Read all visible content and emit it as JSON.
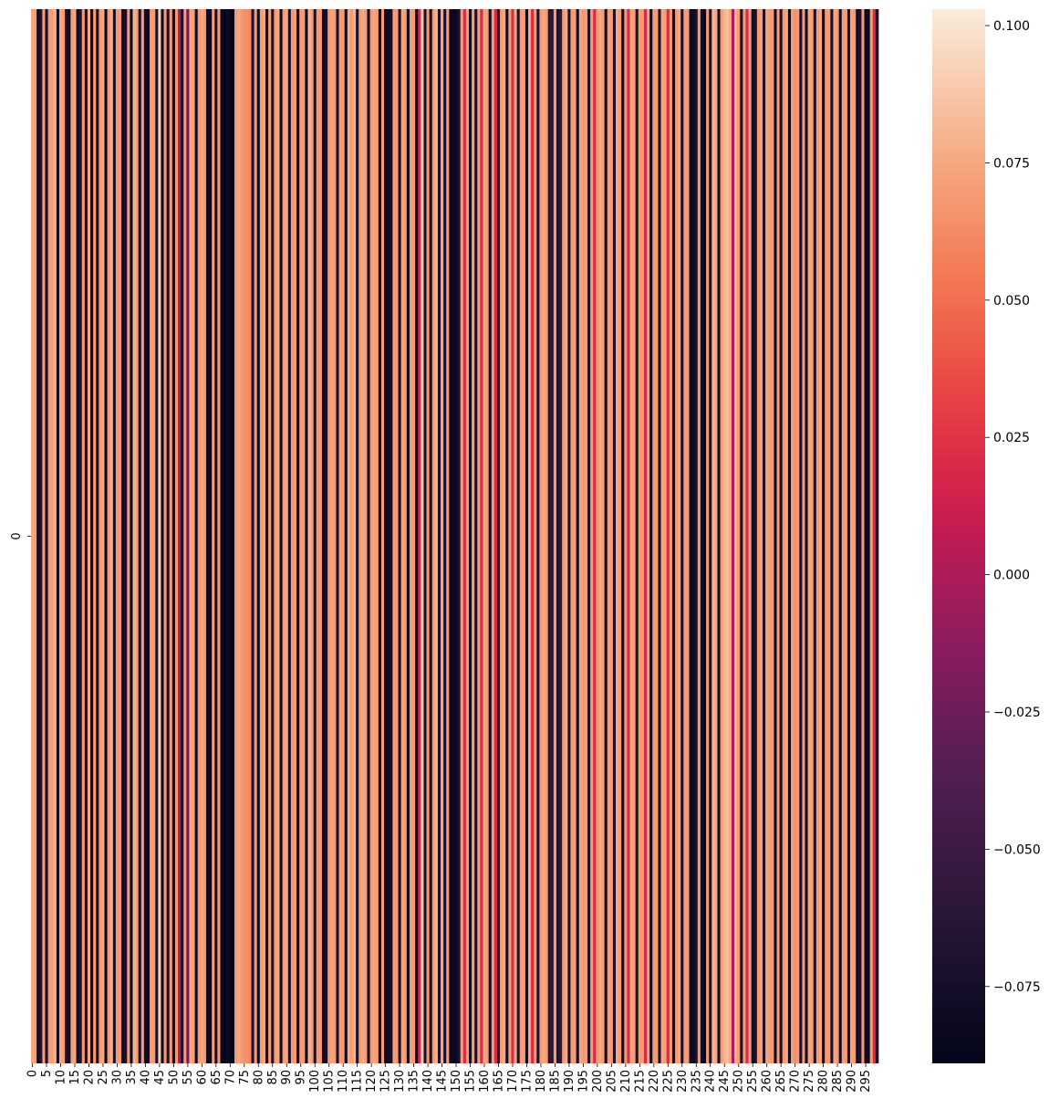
{
  "chart_data": {
    "type": "heatmap",
    "title": "",
    "xlabel": "",
    "ylabel": "",
    "rows": [
      "0"
    ],
    "n_columns": 300,
    "x_tick_labels": [
      "0",
      "5",
      "10",
      "15",
      "20",
      "25",
      "30",
      "35",
      "40",
      "45",
      "50",
      "55",
      "60",
      "65",
      "70",
      "75",
      "80",
      "85",
      "90",
      "95",
      "100",
      "105",
      "110",
      "115",
      "120",
      "125",
      "130",
      "135",
      "140",
      "145",
      "150",
      "155",
      "160",
      "165",
      "170",
      "175",
      "180",
      "185",
      "190",
      "195",
      "200",
      "205",
      "210",
      "215",
      "220",
      "225",
      "230",
      "235",
      "240",
      "245",
      "250",
      "255",
      "260",
      "265",
      "270",
      "275",
      "280",
      "285",
      "290",
      "295"
    ],
    "y_tick_labels": [
      "0"
    ],
    "colorbar": {
      "colormap": "rocket",
      "vmin": -0.089,
      "vmax": 0.103,
      "ticks": [
        0.1,
        0.075,
        0.05,
        0.025,
        0.0,
        -0.025,
        -0.05,
        -0.075
      ],
      "tick_labels": [
        "0.100",
        "0.075",
        "0.050",
        "0.025",
        "0.000",
        "−0.025",
        "−0.050",
        "−0.075"
      ]
    },
    "values": [
      0.075,
      0.07,
      -0.085,
      -0.07,
      0.07,
      -0.075,
      0.07,
      0.07,
      0.08,
      -0.08,
      0.075,
      0.07,
      -0.07,
      -0.08,
      0.07,
      0.075,
      -0.08,
      -0.07,
      0.07,
      -0.07,
      0.075,
      -0.08,
      0.07,
      -0.07,
      0.07,
      0.075,
      -0.085,
      0.07,
      0.08,
      -0.07,
      0.07,
      0.07,
      -0.08,
      -0.07,
      0.07,
      -0.085,
      0.08,
      0.07,
      -0.07,
      0.07,
      -0.08,
      -0.08,
      0.07,
      0.07,
      -0.07,
      0.09,
      -0.08,
      0.07,
      -0.07,
      0.07,
      -0.085,
      0.07,
      0.0,
      -0.07,
      0.07,
      -0.02,
      0.075,
      0.07,
      -0.08,
      0.07,
      0.075,
      0.07,
      -0.08,
      -0.085,
      0.07,
      -0.07,
      0.07,
      -0.085,
      -0.089,
      -0.08,
      -0.085,
      -0.089,
      0.07,
      0.075,
      0.07,
      0.065,
      0.065,
      0.06,
      -0.07,
      0.07,
      -0.08,
      0.07,
      0.075,
      -0.08,
      0.07,
      -0.07,
      0.07,
      0.075,
      -0.08,
      0.07,
      0.075,
      -0.07,
      0.07,
      0.07,
      -0.08,
      0.07,
      0.07,
      -0.085,
      0.08,
      0.07,
      -0.07,
      0.07,
      0.07,
      -0.08,
      -0.075,
      0.07,
      0.075,
      0.07,
      -0.07,
      0.07,
      0.07,
      -0.08,
      0.075,
      0.07,
      0.08,
      -0.07,
      0.07,
      0.075,
      0.07,
      -0.085,
      0.07,
      0.075,
      0.07,
      -0.08,
      0.07,
      -0.085,
      -0.08,
      -0.075,
      0.07,
      0.07,
      -0.07,
      0.075,
      0.07,
      -0.08,
      0.07,
      0.07,
      -0.085,
      0.02,
      0.09,
      -0.07,
      0.07,
      -0.08,
      0.07,
      0.08,
      -0.07,
      0.075,
      -0.07,
      0.07,
      -0.08,
      -0.085,
      -0.085,
      -0.07,
      0.07,
      0.02,
      0.075,
      -0.08,
      0.07,
      -0.07,
      0.07,
      0.02,
      0.075,
      0.07,
      -0.08,
      0.07,
      0.02,
      -0.07,
      0.07,
      0.075,
      -0.08,
      0.07,
      0.02,
      0.075,
      -0.07,
      0.07,
      0.07,
      -0.08,
      0.075,
      0.02,
      0.07,
      -0.07,
      0.07,
      0.075,
      0.07,
      -0.06,
      -0.06,
      0.07,
      -0.07,
      -0.06,
      0.07,
      0.075,
      -0.07,
      0.07,
      0.07,
      -0.08,
      0.075,
      0.07,
      0.07,
      -0.07,
      0.07,
      0.02,
      0.07,
      0.075,
      0.07,
      -0.08,
      0.07,
      0.07,
      -0.07,
      0.075,
      0.07,
      -0.08,
      0.07,
      0.02,
      0.075,
      0.07,
      -0.07,
      0.07,
      0.07,
      0.02,
      0.075,
      -0.08,
      0.07,
      0.07,
      -0.07,
      0.075,
      0.07,
      0.02,
      0.07,
      -0.08,
      0.07,
      0.075,
      -0.07,
      0.07,
      0.07,
      -0.08,
      -0.085,
      -0.07,
      0.07,
      -0.08,
      -0.085,
      0.07,
      -0.07,
      0.08,
      0.075,
      -0.08,
      0.07,
      0.08,
      0.085,
      0.075,
      0.0,
      0.08,
      0.07,
      -0.07,
      0.07,
      0.02,
      0.075,
      -0.08,
      -0.07,
      0.07,
      0.07,
      -0.07,
      0.075,
      0.07,
      0.07,
      -0.08,
      0.07,
      -0.07,
      0.07,
      0.075,
      -0.08,
      0.07,
      0.065,
      0.07,
      -0.07,
      0.07,
      -0.08,
      0.075,
      0.07,
      -0.07,
      0.07,
      0.075,
      -0.08,
      0.07,
      0.07,
      -0.07,
      0.075,
      0.07,
      -0.08,
      0.07,
      0.07,
      -0.07,
      0.075,
      0.07,
      -0.08,
      -0.07,
      0.07,
      -0.085,
      -0.08,
      0.07,
      0.02,
      -0.07
    ]
  }
}
